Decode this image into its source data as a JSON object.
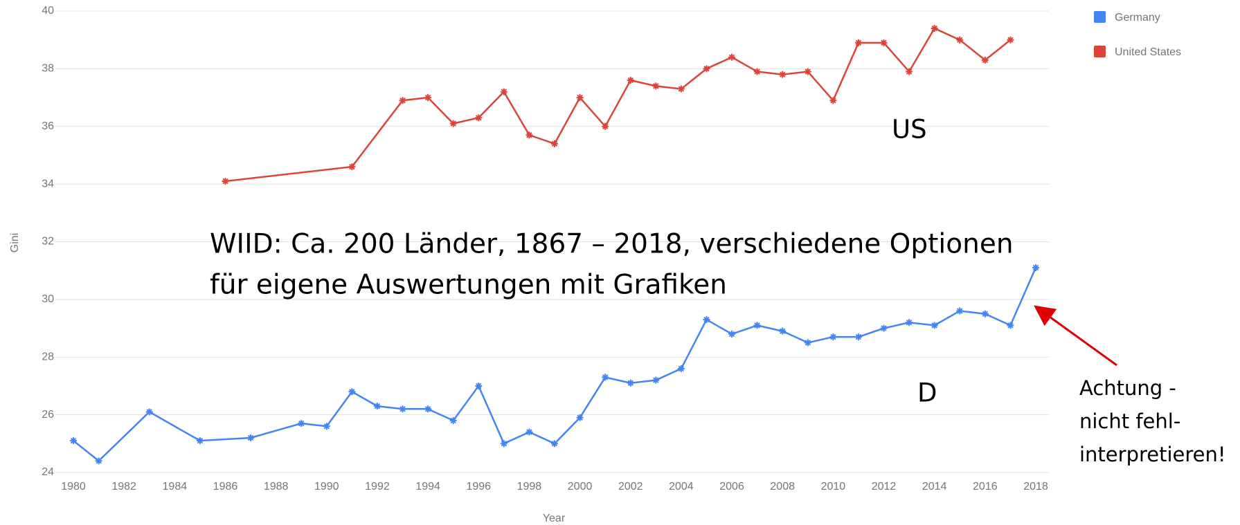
{
  "chart_data": {
    "type": "line",
    "xlabel": "Year",
    "ylabel": "Gini",
    "xlim": [
      1980,
      2018
    ],
    "xticks": [
      1980,
      1982,
      1984,
      1986,
      1988,
      1990,
      1992,
      1994,
      1996,
      1998,
      2000,
      2002,
      2004,
      2006,
      2008,
      2010,
      2012,
      2014,
      2016,
      2018
    ],
    "ylim": [
      24,
      40
    ],
    "yticks": [
      24,
      26,
      28,
      30,
      32,
      34,
      36,
      38,
      40
    ],
    "grid": true,
    "legend": "top-right",
    "series": [
      {
        "name": "Germany",
        "color": "#4285f4",
        "x": [
          1980,
          1981,
          1983,
          1985,
          1987,
          1989,
          1990,
          1991,
          1992,
          1993,
          1994,
          1995,
          1996,
          1997,
          1998,
          1999,
          2000,
          2001,
          2002,
          2003,
          2004,
          2005,
          2006,
          2007,
          2008,
          2009,
          2010,
          2011,
          2012,
          2013,
          2014,
          2015,
          2016,
          2017,
          2018
        ],
        "values": [
          25.1,
          24.4,
          26.1,
          25.1,
          25.2,
          25.7,
          25.6,
          26.8,
          26.3,
          26.2,
          26.2,
          25.8,
          27.0,
          25.0,
          25.4,
          25.0,
          25.9,
          27.3,
          27.1,
          27.2,
          27.6,
          29.3,
          28.8,
          29.1,
          28.9,
          28.5,
          28.7,
          28.7,
          29.0,
          29.2,
          29.1,
          29.6,
          29.5,
          29.1,
          31.1
        ]
      },
      {
        "name": "United States",
        "color": "#db4437",
        "x": [
          1986,
          1991,
          1993,
          1994,
          1995,
          1996,
          1997,
          1998,
          1999,
          2000,
          2001,
          2002,
          2003,
          2004,
          2005,
          2006,
          2007,
          2008,
          2009,
          2010,
          2011,
          2012,
          2013,
          2014,
          2015,
          2016,
          2017
        ],
        "values": [
          34.1,
          34.6,
          36.9,
          37.0,
          36.1,
          36.3,
          37.2,
          35.7,
          35.4,
          37.0,
          36.0,
          37.6,
          37.4,
          37.3,
          38.0,
          38.4,
          37.9,
          37.8,
          37.9,
          36.9,
          38.9,
          38.9,
          37.9,
          39.4,
          39.0,
          38.3,
          39.0
        ]
      }
    ],
    "annotations": [
      [
        "US"
      ],
      [
        "D"
      ],
      [
        "WIID: Ca. 200 Länder, 1867 – 2018, verschiedene Optionen",
        "für eigene Auswertungen mit Grafiken"
      ],
      [
        "Achtung -",
        "nicht fehl-",
        "interpretieren!"
      ]
    ]
  }
}
